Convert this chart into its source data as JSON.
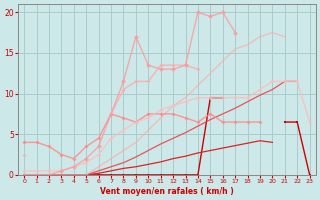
{
  "xlabel": "Vent moyen/en rafales ( km/h )",
  "x": [
    0,
    1,
    2,
    3,
    4,
    5,
    6,
    7,
    8,
    9,
    10,
    11,
    12,
    13,
    14,
    15,
    16,
    17,
    18,
    19,
    20,
    21,
    22,
    23
  ],
  "background_color": "#cce8e8",
  "grid_color": "#aacccc",
  "lines": [
    {
      "y": [
        0,
        0,
        0,
        0,
        0,
        0,
        0,
        0,
        0,
        0,
        0,
        0,
        0,
        0,
        0,
        9.5,
        9.5,
        null,
        null,
        null,
        null,
        6.5,
        6.5,
        0
      ],
      "color": "#cc0000",
      "alpha": 1.0,
      "linewidth": 1.0,
      "marker": "s",
      "markersize": 2.0
    },
    {
      "y": [
        0,
        0,
        0,
        0,
        0,
        0,
        0.2,
        0.5,
        0.8,
        1.0,
        1.3,
        1.6,
        2.0,
        2.3,
        2.7,
        3.0,
        3.3,
        3.6,
        3.9,
        4.2,
        4.0,
        null,
        null,
        null
      ],
      "color": "#dd2222",
      "alpha": 1.0,
      "linewidth": 0.9,
      "marker": null,
      "markersize": 0
    },
    {
      "y": [
        0,
        0,
        0,
        0,
        0,
        0,
        0.5,
        1.0,
        1.5,
        2.2,
        3.0,
        3.8,
        4.5,
        5.2,
        6.0,
        6.8,
        7.5,
        8.2,
        9.0,
        9.8,
        10.5,
        11.5,
        11.5,
        null
      ],
      "color": "#ee4444",
      "alpha": 0.9,
      "linewidth": 0.9,
      "marker": null,
      "markersize": 0
    },
    {
      "y": [
        0,
        0,
        0,
        0,
        0,
        0,
        1.0,
        2.0,
        3.0,
        4.0,
        5.5,
        7.0,
        8.5,
        9.5,
        11.0,
        12.5,
        14.0,
        15.5,
        16.0,
        17.0,
        17.5,
        17.0,
        null,
        null
      ],
      "color": "#ffaaaa",
      "alpha": 0.75,
      "linewidth": 0.9,
      "marker": null,
      "markersize": 0
    },
    {
      "y": [
        4.0,
        4.0,
        3.5,
        2.5,
        2.0,
        3.5,
        4.5,
        7.5,
        7.0,
        6.5,
        7.5,
        7.5,
        7.5,
        7.0,
        6.5,
        7.5,
        6.5,
        6.5,
        6.5,
        6.5,
        null,
        null,
        null,
        null
      ],
      "color": "#ff8888",
      "alpha": 0.85,
      "linewidth": 1.0,
      "marker": "D",
      "markersize": 2.0
    },
    {
      "y": [
        2.5,
        null,
        null,
        null,
        null,
        null,
        null,
        7.5,
        10.5,
        11.5,
        11.5,
        13.5,
        13.5,
        13.5,
        13.0,
        null,
        null,
        null,
        null,
        null,
        null,
        null,
        null,
        null
      ],
      "color": "#ffaaaa",
      "alpha": 0.85,
      "linewidth": 1.0,
      "marker": "D",
      "markersize": 2.0
    },
    {
      "y": [
        0.5,
        0.5,
        0.5,
        0.5,
        1.0,
        1.5,
        2.5,
        4.5,
        5.5,
        6.5,
        7.0,
        8.0,
        8.5,
        9.0,
        9.5,
        9.5,
        9.5,
        9.5,
        9.5,
        10.5,
        11.5,
        11.5,
        11.5,
        6.5
      ],
      "color": "#ffbbbb",
      "alpha": 0.8,
      "linewidth": 1.0,
      "marker": "D",
      "markersize": 2.0
    },
    {
      "y": [
        0,
        0,
        0,
        0.5,
        1.0,
        2.0,
        3.5,
        7.5,
        11.5,
        17.0,
        13.5,
        13.0,
        13.0,
        13.5,
        20.0,
        19.5,
        20.0,
        17.5,
        null,
        null,
        null,
        null,
        null,
        null
      ],
      "color": "#ff9999",
      "alpha": 0.8,
      "linewidth": 1.0,
      "marker": "D",
      "markersize": 2.5
    }
  ],
  "xlim": [
    -0.5,
    23.5
  ],
  "ylim": [
    0,
    21
  ],
  "yticks": [
    0,
    5,
    10,
    15,
    20
  ],
  "xticks": [
    0,
    1,
    2,
    3,
    4,
    5,
    6,
    7,
    8,
    9,
    10,
    11,
    12,
    13,
    14,
    15,
    16,
    17,
    18,
    19,
    20,
    21,
    22,
    23
  ],
  "label_color": "#cc0000",
  "tick_color": "#cc0000"
}
